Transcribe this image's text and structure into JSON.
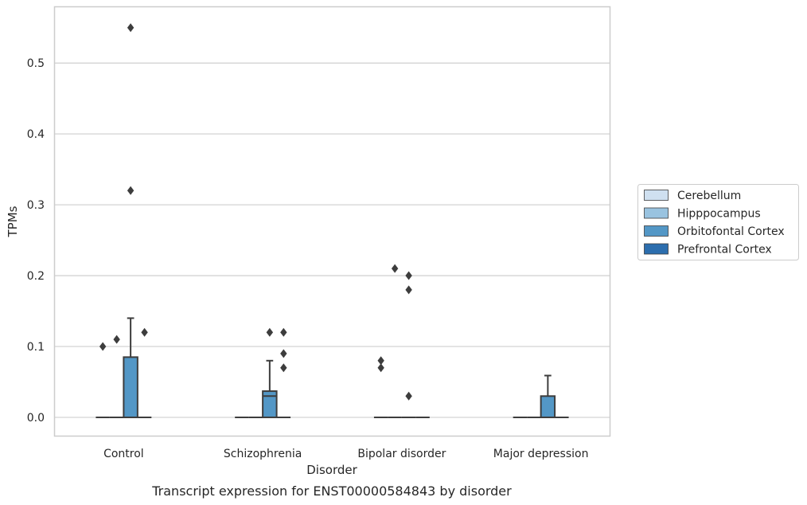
{
  "chart_data": {
    "type": "box",
    "caption": "Transcript expression for ENST00000584843 by disorder",
    "xlabel": "Disorder",
    "ylabel": "TPMs",
    "ylim": [
      -0.027,
      0.58
    ],
    "yticks": [
      0.0,
      0.1,
      0.2,
      0.3,
      0.4,
      0.5
    ],
    "ytick_labels": [
      "0.0",
      "0.1",
      "0.2",
      "0.3",
      "0.4",
      "0.5"
    ],
    "grid": true,
    "legend_position": "right",
    "categories": [
      "Control",
      "Schizophrenia",
      "Bipolar disorder",
      "Major depression"
    ],
    "series": [
      {
        "name": "Cerebellum",
        "color": "#cfe0f0",
        "boxes": [
          {
            "q1": 0,
            "median": 0,
            "q3": 0,
            "whisker_low": 0,
            "whisker_high": 0,
            "outliers": [
              0.1
            ]
          },
          {
            "q1": 0,
            "median": 0,
            "q3": 0,
            "whisker_low": 0,
            "whisker_high": 0,
            "outliers": []
          },
          {
            "q1": 0,
            "median": 0,
            "q3": 0,
            "whisker_low": 0,
            "whisker_high": 0,
            "outliers": [
              0.08,
              0.07
            ]
          },
          {
            "q1": 0,
            "median": 0,
            "q3": 0,
            "whisker_low": 0,
            "whisker_high": 0,
            "outliers": []
          }
        ]
      },
      {
        "name": "Hipppocampus",
        "color": "#99c3e0",
        "boxes": [
          {
            "q1": 0,
            "median": 0,
            "q3": 0,
            "whisker_low": 0,
            "whisker_high": 0,
            "outliers": [
              0.11
            ]
          },
          {
            "q1": 0,
            "median": 0,
            "q3": 0,
            "whisker_low": 0,
            "whisker_high": 0,
            "outliers": []
          },
          {
            "q1": 0,
            "median": 0,
            "q3": 0,
            "whisker_low": 0,
            "whisker_high": 0,
            "outliers": [
              0.21
            ]
          },
          {
            "q1": 0,
            "median": 0,
            "q3": 0,
            "whisker_low": 0,
            "whisker_high": 0,
            "outliers": []
          }
        ]
      },
      {
        "name": "Orbitofontal Cortex",
        "color": "#5397c6",
        "boxes": [
          {
            "q1": 0,
            "median": 0,
            "q3": 0.085,
            "whisker_low": 0,
            "whisker_high": 0.14,
            "outliers": [
              0.55,
              0.32
            ]
          },
          {
            "q1": 0,
            "median": 0.03,
            "q3": 0.037,
            "whisker_low": 0,
            "whisker_high": 0.08,
            "outliers": [
              0.12
            ]
          },
          {
            "q1": 0,
            "median": 0,
            "q3": 0,
            "whisker_low": 0,
            "whisker_high": 0,
            "outliers": [
              0.2,
              0.18,
              0.03
            ]
          },
          {
            "q1": 0,
            "median": 0,
            "q3": 0.03,
            "whisker_low": 0,
            "whisker_high": 0.059,
            "outliers": []
          }
        ]
      },
      {
        "name": "Prefrontal Cortex",
        "color": "#2c6eae",
        "boxes": [
          {
            "q1": 0,
            "median": 0,
            "q3": 0,
            "whisker_low": 0,
            "whisker_high": 0,
            "outliers": [
              0.12
            ]
          },
          {
            "q1": 0,
            "median": 0,
            "q3": 0,
            "whisker_low": 0,
            "whisker_high": 0,
            "outliers": [
              0.12,
              0.09,
              0.07
            ]
          },
          {
            "q1": 0,
            "median": 0,
            "q3": 0,
            "whisker_low": 0,
            "whisker_high": 0,
            "outliers": []
          },
          {
            "q1": 0,
            "median": 0,
            "q3": 0,
            "whisker_low": 0,
            "whisker_high": 0,
            "outliers": []
          }
        ]
      }
    ],
    "colors": {
      "grid": "#d3d3d3",
      "frame": "#cccccc",
      "box_edge": "#3d3d3d",
      "outlier": "#3d3d3d"
    }
  }
}
